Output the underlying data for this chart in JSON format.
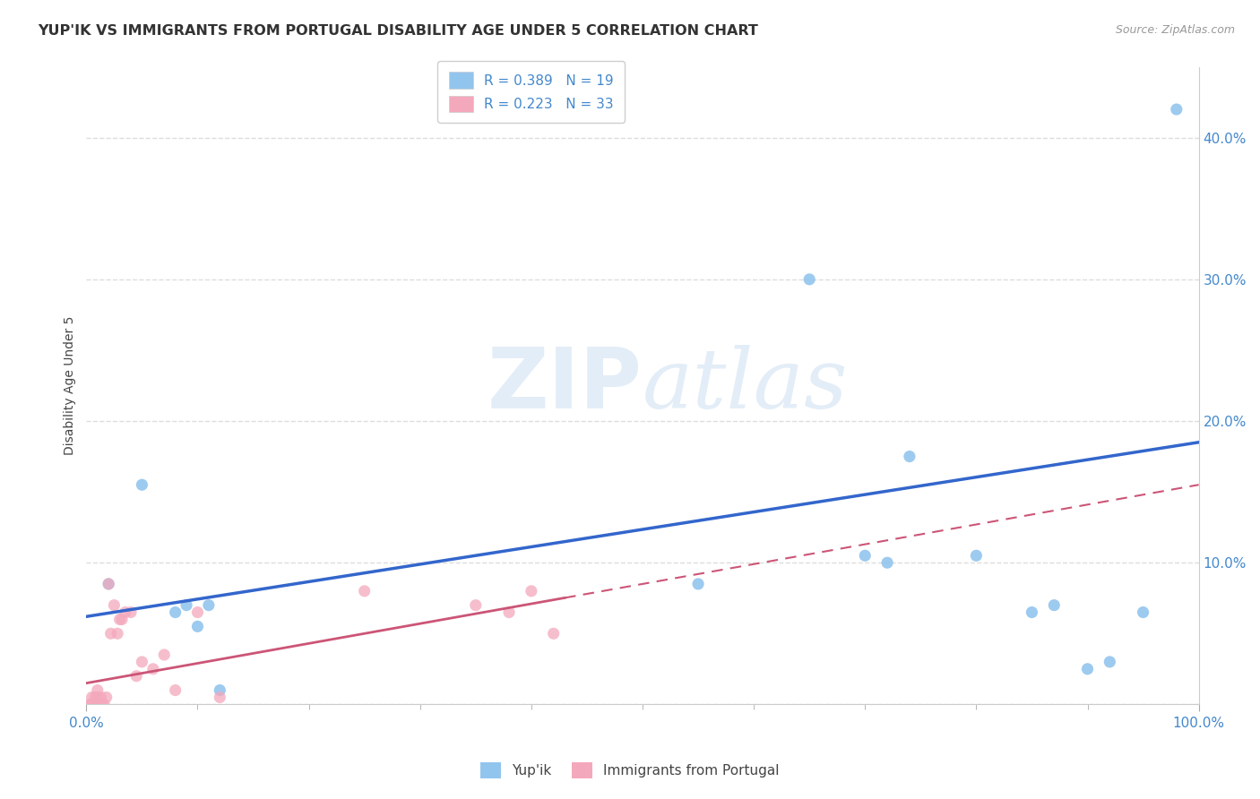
{
  "title": "YUP'IK VS IMMIGRANTS FROM PORTUGAL DISABILITY AGE UNDER 5 CORRELATION CHART",
  "source": "Source: ZipAtlas.com",
  "ylabel": "Disability Age Under 5",
  "xlim": [
    0.0,
    1.0
  ],
  "ylim": [
    0.0,
    0.45
  ],
  "ytick_vals": [
    0.0,
    0.1,
    0.2,
    0.3,
    0.4
  ],
  "ytick_labels": [
    "",
    "10.0%",
    "20.0%",
    "30.0%",
    "40.0%"
  ],
  "xtick_vals": [
    0.0,
    1.0
  ],
  "xtick_labels": [
    "0.0%",
    "100.0%"
  ],
  "xtick_minor": [
    0.1,
    0.2,
    0.3,
    0.4,
    0.5,
    0.6,
    0.7,
    0.8,
    0.9
  ],
  "legend_labels": [
    "Yup'ik",
    "Immigrants from Portugal"
  ],
  "blue_color": "#92C5EE",
  "pink_color": "#F4A8BC",
  "blue_line_color": "#3366CC",
  "pink_line_color": "#CC5577",
  "watermark_zip": "ZIP",
  "watermark_atlas": "atlas",
  "R_blue": 0.389,
  "N_blue": 19,
  "R_pink": 0.223,
  "N_pink": 33,
  "blue_scatter_x": [
    0.02,
    0.05,
    0.08,
    0.09,
    0.1,
    0.11,
    0.12,
    0.55,
    0.65,
    0.7,
    0.72,
    0.74,
    0.8,
    0.85,
    0.87,
    0.9,
    0.92,
    0.95,
    0.98
  ],
  "blue_scatter_y": [
    0.085,
    0.155,
    0.065,
    0.07,
    0.055,
    0.07,
    0.01,
    0.085,
    0.3,
    0.105,
    0.1,
    0.175,
    0.105,
    0.065,
    0.07,
    0.025,
    0.03,
    0.065,
    0.42
  ],
  "pink_scatter_x": [
    0.003,
    0.004,
    0.005,
    0.006,
    0.007,
    0.008,
    0.01,
    0.01,
    0.012,
    0.013,
    0.014,
    0.016,
    0.018,
    0.02,
    0.022,
    0.025,
    0.028,
    0.03,
    0.032,
    0.035,
    0.04,
    0.045,
    0.05,
    0.06,
    0.07,
    0.08,
    0.1,
    0.12,
    0.25,
    0.35,
    0.38,
    0.4,
    0.42
  ],
  "pink_scatter_y": [
    0.0,
    0.0,
    0.005,
    0.0,
    0.0,
    0.005,
    0.005,
    0.01,
    0.0,
    0.005,
    0.0,
    0.0,
    0.005,
    0.085,
    0.05,
    0.07,
    0.05,
    0.06,
    0.06,
    0.065,
    0.065,
    0.02,
    0.03,
    0.025,
    0.035,
    0.01,
    0.065,
    0.005,
    0.08,
    0.07,
    0.065,
    0.08,
    0.05
  ],
  "grid_color": "#DDDDDD",
  "background_color": "#FFFFFF",
  "title_fontsize": 11.5,
  "axis_label_fontsize": 10,
  "tick_fontsize": 11,
  "legend_fontsize": 11,
  "marker_size": 90,
  "blue_line_start_x": 0.0,
  "blue_line_end_x": 1.0,
  "blue_line_start_y": 0.062,
  "blue_line_end_y": 0.185,
  "pink_line_start_x": 0.0,
  "pink_line_end_x": 1.0,
  "pink_line_start_y": 0.015,
  "pink_line_end_y": 0.155
}
